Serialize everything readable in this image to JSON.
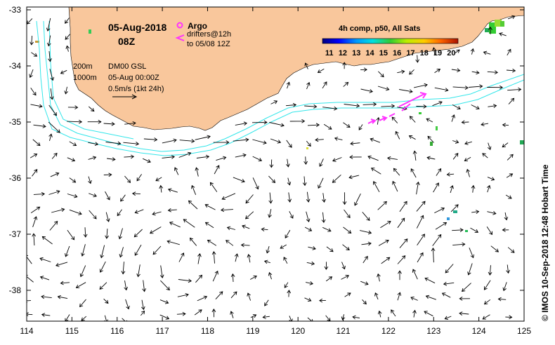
{
  "map": {
    "date": "05-Aug-2018",
    "hour": "08Z",
    "legend": {
      "argo": "Argo",
      "drifters": "drifters@12h",
      "drifters_to": "to 05/08 12Z"
    },
    "contours": {
      "c200": "200m",
      "c1000": "1000m"
    },
    "model": {
      "name": "DM00 GSL",
      "time": "05-Aug 00:00Z",
      "scale": "0.5m/s (1kt 24h)"
    },
    "colorbar": {
      "title": "4h comp, p50, All Sats",
      "ticks": [
        "11",
        "12",
        "13",
        "14",
        "15",
        "16",
        "17",
        "18",
        "19",
        "20"
      ]
    },
    "credit": "© IMOS 10-Sep-2018 12:48 Hobart Time",
    "x_ticks": [
      "114",
      "115",
      "116",
      "117",
      "118",
      "119",
      "120",
      "121",
      "122",
      "123",
      "124",
      "125"
    ],
    "y_ticks": [
      "-33",
      "-34",
      "-35",
      "-36",
      "-37",
      "-38"
    ],
    "lon_range": [
      114,
      125
    ],
    "lat_range": [
      -38.55,
      -32.95
    ]
  },
  "colors": {
    "land": "#f9c79c",
    "contour": "#33e6ea",
    "argo": "#ff33ff",
    "arrow": "#000000"
  }
}
